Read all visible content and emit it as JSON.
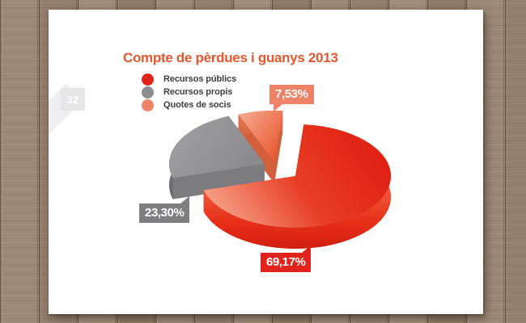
{
  "page": {
    "number": "32"
  },
  "colors": {
    "title": "#e7572f",
    "legend_text": "#3e3e40",
    "label_text": "#ffffff",
    "page_background": "#ffffff"
  },
  "chart_data": {
    "type": "pie",
    "effect": "3d-exploded",
    "title": "Compte de pèrdues i guanys 2013",
    "legend_position": "top-left",
    "slices": [
      {
        "label": "Recursos públics",
        "value": 69.17,
        "display": "69,17%",
        "color": "#e2231c",
        "label_bg": "#e2231c"
      },
      {
        "label": "Recursos propis",
        "value": 23.3,
        "display": "23,30%",
        "color": "#8d8d91",
        "label_bg": "#7f7f83"
      },
      {
        "label": "Quotes de socis",
        "value": 7.53,
        "display": "7,53%",
        "color": "#ee8266",
        "label_bg": "#ee8266"
      }
    ]
  }
}
